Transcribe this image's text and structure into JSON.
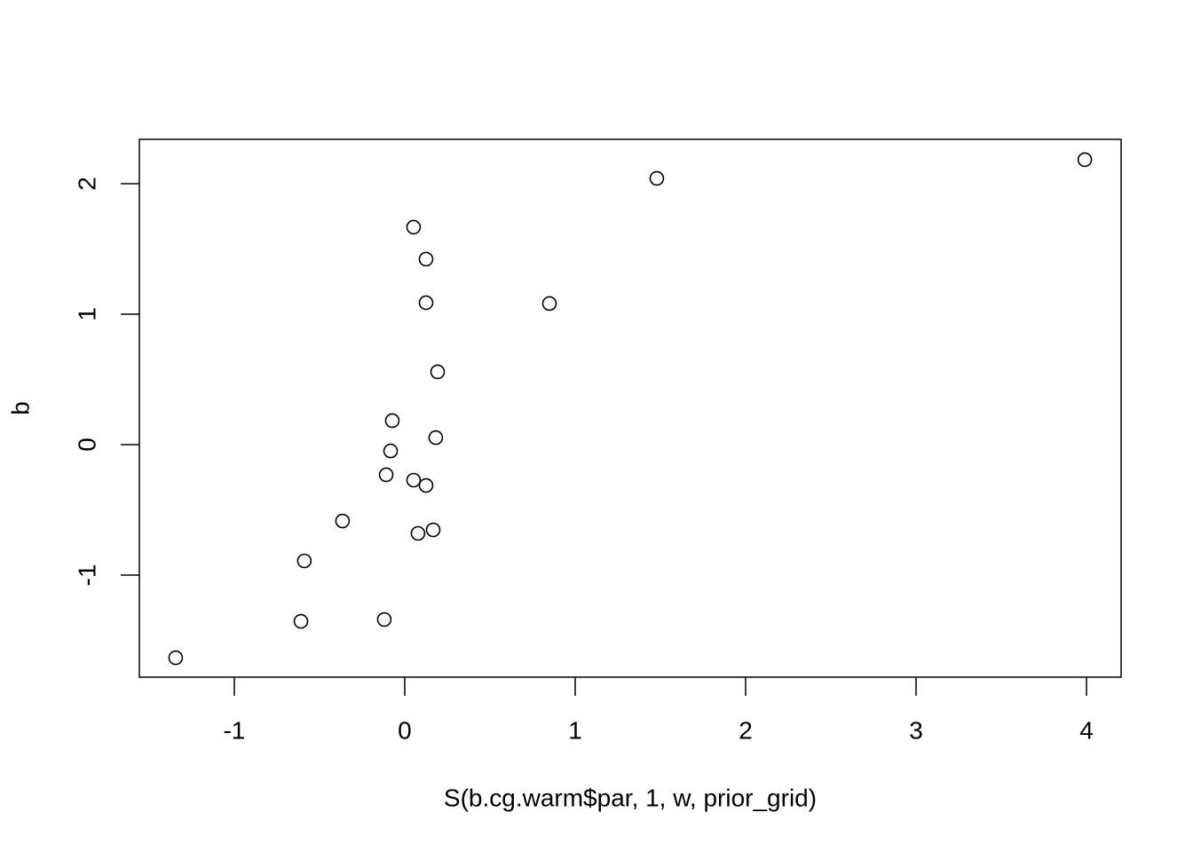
{
  "chart_data": {
    "type": "scatter",
    "xlabel": "S(b.cg.warm$par, 1, w, prior_grid)",
    "ylabel": "b",
    "x": [
      3.99,
      1.479,
      0.052,
      0.125,
      0.125,
      0.849,
      0.193,
      -0.073,
      0.182,
      -0.083,
      -0.109,
      0.052,
      0.125,
      -0.365,
      0.167,
      0.078,
      -0.589,
      -0.609,
      -0.12,
      -1.344
    ],
    "values": [
      2.184,
      2.041,
      1.667,
      1.422,
      1.088,
      1.082,
      0.558,
      0.184,
      0.054,
      -0.048,
      -0.231,
      -0.272,
      -0.313,
      -0.585,
      -0.653,
      -0.68,
      -0.891,
      -1.354,
      -1.34,
      -1.633
    ],
    "color": "#000000",
    "xlim": [
      -1.557,
      4.203
    ],
    "ylim": [
      -1.782,
      2.34
    ],
    "xticks": [
      -1,
      0,
      1,
      2,
      3,
      4
    ],
    "yticks": [
      -1,
      0,
      1,
      2
    ],
    "grid": false
  }
}
